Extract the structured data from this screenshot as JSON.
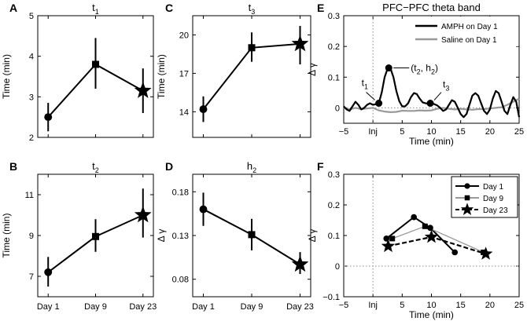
{
  "chart_data": [
    {
      "id": "A",
      "letter": "A",
      "type": "line",
      "title": "t",
      "title_subscript": "1",
      "ylabel": "Time (min)",
      "ylim": [
        2,
        5
      ],
      "yticks": [
        2,
        3,
        4,
        5
      ],
      "ytick_labels": [
        "2",
        "3",
        "4",
        "5"
      ],
      "categories": [
        "Day 1",
        "Day 9",
        "Day 23"
      ],
      "show_xtick_labels": false,
      "values": [
        2.5,
        3.8,
        3.15
      ],
      "error_low": [
        2.15,
        3.2,
        2.6
      ],
      "error_high": [
        2.85,
        4.45,
        3.7
      ],
      "markers": [
        "circle",
        "square",
        "star"
      ]
    },
    {
      "id": "B",
      "letter": "B",
      "type": "line",
      "title": "t",
      "title_subscript": "2",
      "ylabel": "Time (min)",
      "ylim": [
        6,
        12
      ],
      "yticks": [
        7,
        9,
        11
      ],
      "ytick_labels": [
        "7",
        "9",
        "11"
      ],
      "categories": [
        "Day 1",
        "Day 9",
        "Day 23"
      ],
      "show_xtick_labels": true,
      "values": [
        7.2,
        8.95,
        10.0
      ],
      "error_low": [
        6.5,
        8.2,
        8.9
      ],
      "error_high": [
        7.95,
        9.8,
        11.3
      ],
      "markers": [
        "circle",
        "square",
        "star"
      ]
    },
    {
      "id": "C",
      "letter": "C",
      "type": "line",
      "title": "t",
      "title_subscript": "3",
      "ylabel": "Time (min)",
      "ylim": [
        12,
        21.5
      ],
      "yticks": [
        14,
        17,
        20
      ],
      "ytick_labels": [
        "14",
        "17",
        "20"
      ],
      "categories": [
        "Day 1",
        "Day 9",
        "Day 23"
      ],
      "show_xtick_labels": false,
      "values": [
        14.2,
        19.0,
        19.3
      ],
      "error_low": [
        13.2,
        17.9,
        17.7
      ],
      "error_high": [
        15.2,
        20.2,
        20.7
      ],
      "markers": [
        "circle",
        "square",
        "star"
      ]
    },
    {
      "id": "D",
      "letter": "D",
      "type": "line",
      "title": "h",
      "title_subscript": "2",
      "ylabel": "Δ γ",
      "ylim": [
        0.06,
        0.2
      ],
      "yticks": [
        0.08,
        0.13,
        0.18
      ],
      "ytick_labels": [
        "0.08",
        "0.13",
        "0.18"
      ],
      "categories": [
        "Day 1",
        "Day 9",
        "Day 23"
      ],
      "show_xtick_labels": true,
      "values": [
        0.16,
        0.131,
        0.097
      ],
      "error_low": [
        0.141,
        0.113,
        0.086
      ],
      "error_high": [
        0.179,
        0.149,
        0.111
      ],
      "markers": [
        "circle",
        "square",
        "star"
      ]
    },
    {
      "id": "E",
      "letter": "E",
      "type": "line",
      "title": "PFC−PFC theta band",
      "xlabel": "Time (min)",
      "ylabel": "Δ γ",
      "xlim": [
        -5,
        25
      ],
      "ylim": [
        -0.05,
        0.3
      ],
      "xticks": [
        -5,
        0,
        5,
        10,
        15,
        20,
        25
      ],
      "xtick_labels": [
        "−5",
        "Inj",
        "5",
        "10",
        "15",
        "20",
        "25"
      ],
      "yticks": [
        0,
        0.1,
        0.2,
        0.3
      ],
      "ytick_labels": [
        "0",
        "0.1",
        "0.2",
        "0.3"
      ],
      "legend": "top-right",
      "series": [
        {
          "name": "AMPH on Day 1",
          "color": "#000000",
          "x": [
            -5,
            -4.5,
            -4,
            -3.5,
            -3,
            -2.5,
            -2,
            -1.5,
            -1,
            -0.5,
            0,
            0.5,
            1,
            1.5,
            2,
            2.5,
            3,
            3.5,
            4,
            4.5,
            5,
            5.5,
            6,
            6.5,
            7,
            7.5,
            8,
            8.5,
            9,
            9.5,
            10,
            10.5,
            11,
            11.5,
            12,
            12.5,
            13,
            13.5,
            14,
            14.5,
            15,
            15.5,
            16,
            16.5,
            17,
            17.5,
            18,
            18.5,
            19,
            19.5,
            20,
            20.5,
            21,
            21.5,
            22,
            22.5,
            23,
            23.5,
            24,
            24.5,
            25
          ],
          "y": [
            0.005,
            -0.005,
            -0.01,
            0.005,
            0.02,
            0.01,
            -0.005,
            0.0,
            0.01,
            0.015,
            0.01,
            0.012,
            0.015,
            0.05,
            0.1,
            0.128,
            0.128,
            0.1,
            0.055,
            0.022,
            0.005,
            0.005,
            0.015,
            0.035,
            0.048,
            0.045,
            0.03,
            0.018,
            0.015,
            0.013,
            0.015,
            0.012,
            0.008,
            0.0,
            -0.01,
            -0.005,
            0.01,
            0.025,
            0.02,
            0.0,
            -0.02,
            -0.03,
            -0.02,
            0.01,
            0.04,
            0.048,
            0.04,
            0.015,
            -0.01,
            -0.02,
            -0.005,
            0.03,
            0.055,
            0.048,
            0.02,
            -0.01,
            -0.02,
            0.01,
            0.035,
            0.02,
            -0.03
          ]
        },
        {
          "name": "Saline on Day 1",
          "color": "#999999",
          "x": [
            -5,
            -4,
            -3,
            -2,
            -1,
            0,
            1,
            2,
            3,
            4,
            5,
            6,
            7,
            8,
            9,
            10,
            11,
            12,
            13,
            14,
            15,
            16,
            17,
            18,
            19,
            20,
            21,
            22,
            23,
            24,
            25
          ],
          "y": [
            0.0,
            -0.005,
            0.0,
            -0.004,
            -0.002,
            0.0,
            -0.008,
            -0.012,
            -0.014,
            -0.013,
            -0.009,
            -0.01,
            -0.01,
            -0.008,
            -0.009,
            -0.008,
            -0.003,
            0.0,
            -0.003,
            -0.005,
            -0.003,
            -0.005,
            -0.006,
            -0.004,
            -0.004,
            -0.002,
            0.0,
            0.002,
            0.01,
            0.02,
            0.03
          ]
        }
      ],
      "annotations": [
        {
          "label": "t",
          "sub": "1",
          "x": 1.0,
          "y": 0.015
        },
        {
          "label": "(t",
          "sub": "2",
          "suffix": ", h",
          "sub2": "2",
          "tail": ")",
          "x": 2.7,
          "y": 0.13
        },
        {
          "label": "t",
          "sub": "3",
          "x": 9.8,
          "y": 0.015
        }
      ]
    },
    {
      "id": "F",
      "letter": "F",
      "type": "line",
      "xlabel": "Time (min)",
      "ylabel": "Δ γ",
      "xlim": [
        -5,
        25
      ],
      "ylim": [
        -0.1,
        0.3
      ],
      "xticks": [
        -5,
        0,
        5,
        10,
        15,
        20,
        25
      ],
      "xtick_labels": [
        "−5",
        "Inj",
        "5",
        "10",
        "15",
        "20",
        "25"
      ],
      "yticks": [
        -0.1,
        0,
        0.1,
        0.2,
        0.3
      ],
      "ytick_labels": [
        "−0.1",
        "0",
        "0.1",
        "0.2",
        "0.3"
      ],
      "legend": "top-right",
      "series": [
        {
          "name": "Day 1",
          "marker": "circle",
          "color": "#000000",
          "style": "solid",
          "x": [
            2.3,
            7.0,
            9.8,
            14.0
          ],
          "y": [
            0.09,
            0.16,
            0.125,
            0.045
          ]
        },
        {
          "name": "Day 9",
          "marker": "square",
          "color": "#999999",
          "style": "solid",
          "x": [
            3.3,
            8.9,
            18.9
          ],
          "y": [
            0.09,
            0.13,
            0.045
          ]
        },
        {
          "name": "Day 23",
          "marker": "star",
          "color": "#000000",
          "style": "dashed",
          "x": [
            2.6,
            10.0,
            19.3
          ],
          "y": [
            0.065,
            0.095,
            0.04
          ]
        }
      ]
    }
  ]
}
